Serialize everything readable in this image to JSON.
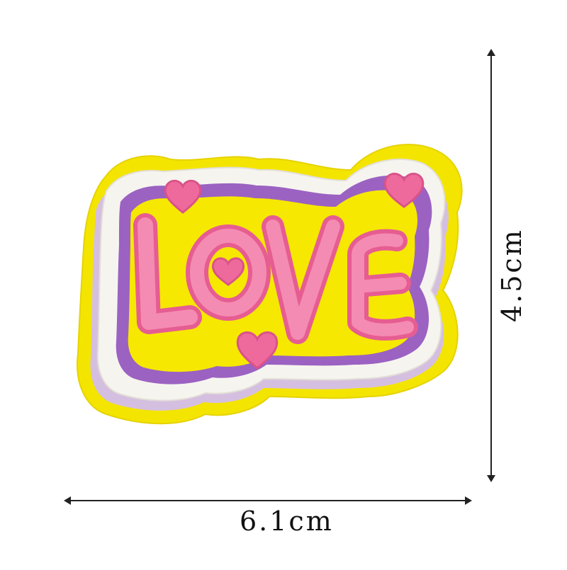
{
  "patch": {
    "word": "LOVE",
    "colors": {
      "border_yellow": "#f2e600",
      "white_layer": "#f3f1ec",
      "purple_layer": "#9a5fc0",
      "lilac_shadow": "#cdb3dc",
      "letter_pink": "#f07aa6",
      "heart_pink": "#ef6f9f"
    }
  },
  "dimensions": {
    "width_label": "6.1cm",
    "height_label": "4.5cm"
  }
}
